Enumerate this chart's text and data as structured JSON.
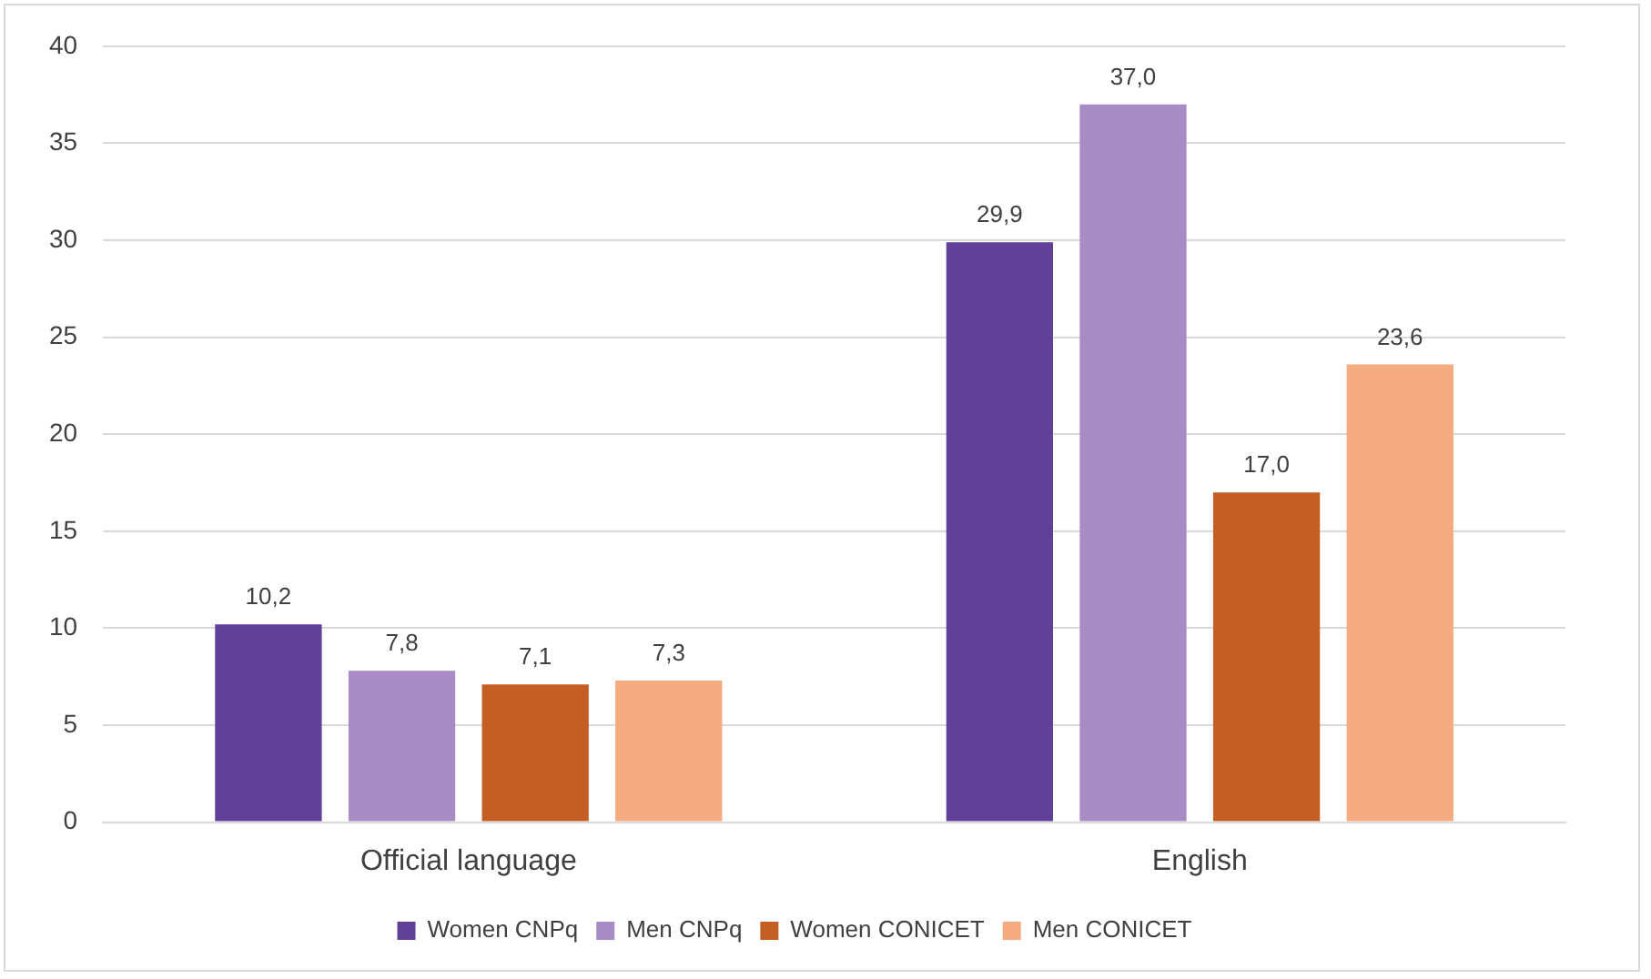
{
  "chart_data": {
    "type": "bar",
    "categories": [
      "Official language",
      "English"
    ],
    "series": [
      {
        "name": "Women CNPq",
        "color": "#61409a",
        "values": [
          10.2,
          29.9
        ],
        "value_labels": [
          "10,2",
          "29,9"
        ]
      },
      {
        "name": "Men CNPq",
        "color": "#a88bc5",
        "values": [
          7.8,
          37.0
        ],
        "value_labels": [
          "7,8",
          "37,0"
        ]
      },
      {
        "name": "Women CONICET",
        "color": "#c45e24",
        "values": [
          7.1,
          17.0
        ],
        "value_labels": [
          "7,1",
          "17,0"
        ]
      },
      {
        "name": "Men CONICET",
        "color": "#f5ab7f",
        "values": [
          7.3,
          23.6
        ],
        "value_labels": [
          "7,3",
          "23,6"
        ]
      }
    ],
    "ylim": [
      0,
      40
    ],
    "yticks": [
      0,
      5,
      10,
      15,
      20,
      25,
      30,
      35,
      40
    ],
    "grid": "y",
    "legend": "bottom"
  }
}
